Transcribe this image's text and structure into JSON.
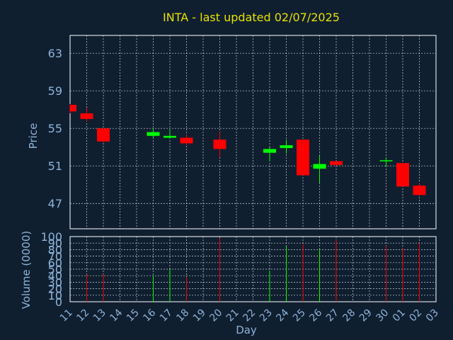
{
  "chart_data": {
    "type": "candlestick",
    "title": "INTA - last updated 02/07/2025",
    "xlabel": "Day",
    "colors": {
      "background": "#0f1f30",
      "up": "#00ff00",
      "down": "#ff0000",
      "grid": "#ffffff",
      "text": "#8fb3d9",
      "title": "#e8e000"
    },
    "x_ticks": [
      "11",
      "12",
      "13",
      "14",
      "15",
      "16",
      "17",
      "18",
      "19",
      "20",
      "21",
      "22",
      "23",
      "24",
      "25",
      "26",
      "27",
      "28",
      "29",
      "30",
      "01",
      "02",
      "03"
    ],
    "price_panel": {
      "ylabel": "Price",
      "y_ticks": [
        47,
        51,
        55,
        59,
        63
      ],
      "ylim": [
        44.3,
        64.9
      ],
      "candles": [
        {
          "day": "11",
          "open": 57.5,
          "high": 57.6,
          "low": 56.6,
          "close": 56.8
        },
        {
          "day": "12",
          "open": 56.6,
          "high": 57.2,
          "low": 55.7,
          "close": 56.0
        },
        {
          "day": "13",
          "open": 55.0,
          "high": 55.0,
          "low": 53.5,
          "close": 53.6
        },
        {
          "day": "16",
          "open": 54.2,
          "high": 55.0,
          "low": 53.9,
          "close": 54.6
        },
        {
          "day": "17",
          "open": 54.0,
          "high": 54.9,
          "low": 53.9,
          "close": 54.2
        },
        {
          "day": "18",
          "open": 54.0,
          "high": 54.3,
          "low": 53.2,
          "close": 53.4
        },
        {
          "day": "20",
          "open": 53.8,
          "high": 54.6,
          "low": 51.9,
          "close": 52.8
        },
        {
          "day": "23",
          "open": 52.4,
          "high": 53.0,
          "low": 51.5,
          "close": 52.8
        },
        {
          "day": "24",
          "open": 52.9,
          "high": 53.8,
          "low": 52.3,
          "close": 53.2
        },
        {
          "day": "25",
          "open": 53.8,
          "high": 53.8,
          "low": 50.0,
          "close": 50.0
        },
        {
          "day": "26",
          "open": 50.7,
          "high": 52.1,
          "low": 49.2,
          "close": 51.2
        },
        {
          "day": "27",
          "open": 51.5,
          "high": 51.5,
          "low": 51.0,
          "close": 51.1
        },
        {
          "day": "30",
          "open": 51.6,
          "high": 51.9,
          "low": 50.9,
          "close": 51.6
        },
        {
          "day": "01",
          "open": 51.3,
          "high": 51.3,
          "low": 48.8,
          "close": 48.8
        },
        {
          "day": "02",
          "open": 48.9,
          "high": 49.2,
          "low": 47.9,
          "close": 47.9
        }
      ]
    },
    "volume_panel": {
      "ylabel": "Volume (0000)",
      "y_ticks": [
        0,
        10,
        20,
        30,
        40,
        50,
        60,
        70,
        80,
        90,
        100
      ],
      "ylim": [
        0,
        100
      ],
      "bars": [
        {
          "day": "12",
          "value": 42,
          "dir": "down"
        },
        {
          "day": "13",
          "value": 42,
          "dir": "down"
        },
        {
          "day": "16",
          "value": 40,
          "dir": "up"
        },
        {
          "day": "17",
          "value": 50,
          "dir": "up"
        },
        {
          "day": "18",
          "value": 38,
          "dir": "down"
        },
        {
          "day": "20",
          "value": 98,
          "dir": "down"
        },
        {
          "day": "23",
          "value": 48,
          "dir": "up"
        },
        {
          "day": "24",
          "value": 85,
          "dir": "up"
        },
        {
          "day": "25",
          "value": 88,
          "dir": "down"
        },
        {
          "day": "26",
          "value": 80,
          "dir": "up"
        },
        {
          "day": "27",
          "value": 95,
          "dir": "down"
        },
        {
          "day": "30",
          "value": 86,
          "dir": "down"
        },
        {
          "day": "01",
          "value": 82,
          "dir": "down"
        },
        {
          "day": "02",
          "value": 90,
          "dir": "down"
        }
      ]
    }
  }
}
